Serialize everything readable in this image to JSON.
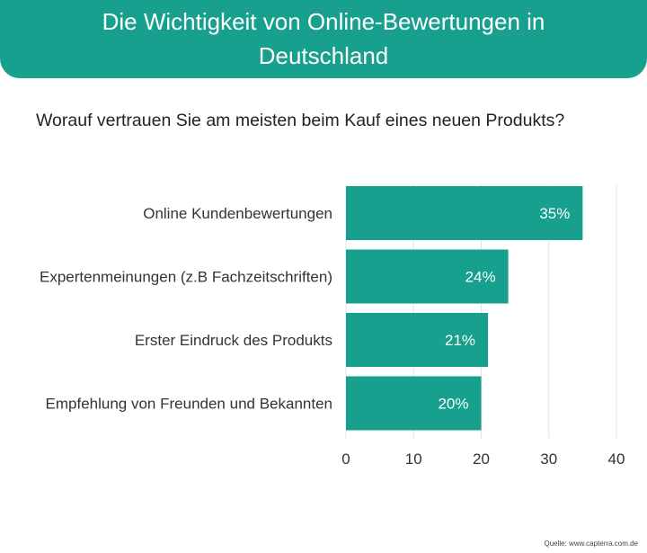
{
  "header": {
    "title": "Die Wichtigkeit von Online-Bewertungen in Deutschland"
  },
  "question": "Worauf vertrauen Sie am meisten beim Kauf eines neuen Produkts?",
  "source": "Quelle: www.capterra.com.de",
  "colors": {
    "accent": "#16a08d",
    "bar": "#16a08d",
    "grid": "#e3e3e3"
  },
  "chart_data": {
    "type": "bar",
    "orientation": "horizontal",
    "categories": [
      "Online Kundenbewertungen",
      "Expertenmeinungen (z.B Fachzeitschriften)",
      "Erster Eindruck des Produkts",
      "Empfehlung von Freunden und Bekannten"
    ],
    "values": [
      35,
      24,
      21,
      20
    ],
    "data_labels": [
      "35%",
      "24%",
      "21%",
      "20%"
    ],
    "xticks": [
      "0",
      "10",
      "20",
      "30",
      "40"
    ],
    "xlim": [
      0,
      40
    ],
    "title": "",
    "xlabel": "",
    "ylabel": "",
    "grid": true
  }
}
